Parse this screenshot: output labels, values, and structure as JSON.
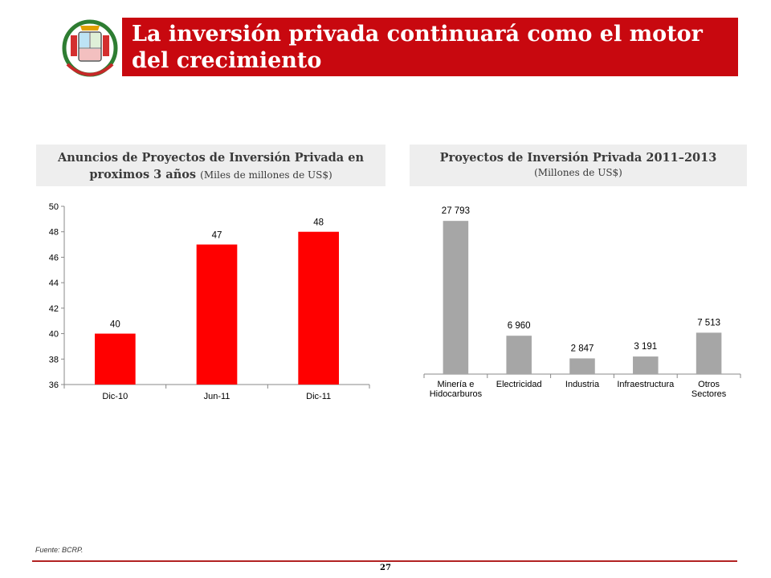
{
  "header": {
    "title": "La inversión privada continuará como el motor del crecimiento"
  },
  "colors": {
    "title_bar": "#c8080f",
    "left_bars": "#ff0000",
    "right_bars": "#a6a6a6",
    "panel_bg": "#eeeeee"
  },
  "left_panel": {
    "title": "Anuncios de Proyectos de Inversión Privada en proximos 3 años",
    "unit": "(Miles de millones de US$)"
  },
  "right_panel": {
    "title": "Proyectos de Inversión Privada 2011–2013",
    "unit": "(Millones de US$)"
  },
  "chart_data": [
    {
      "type": "bar",
      "categories": [
        "Dic-10",
        "Jun-11",
        "Dic-11"
      ],
      "values": [
        40,
        47,
        48
      ],
      "data_labels": [
        "40",
        "47",
        "48"
      ],
      "ylim": [
        36,
        50
      ],
      "yticks": [
        "36",
        "38",
        "40",
        "42",
        "44",
        "46",
        "48",
        "50"
      ],
      "grid": false,
      "color": "#ff0000"
    },
    {
      "type": "bar",
      "categories": [
        [
          "Minería e",
          "Hidocarburos"
        ],
        [
          "Electricidad"
        ],
        [
          "Industria"
        ],
        [
          "Infraestructura"
        ],
        [
          "Otros",
          "Sectores"
        ]
      ],
      "values": [
        27793,
        6960,
        2847,
        3191,
        7513
      ],
      "data_labels": [
        "27 793",
        "6 960",
        "2 847",
        "3 191",
        "7 513"
      ],
      "ylim": [
        0,
        30000
      ],
      "grid": false,
      "color": "#a6a6a6"
    }
  ],
  "footer": {
    "source": "Fuente: BCRP.",
    "page_number": "27"
  }
}
